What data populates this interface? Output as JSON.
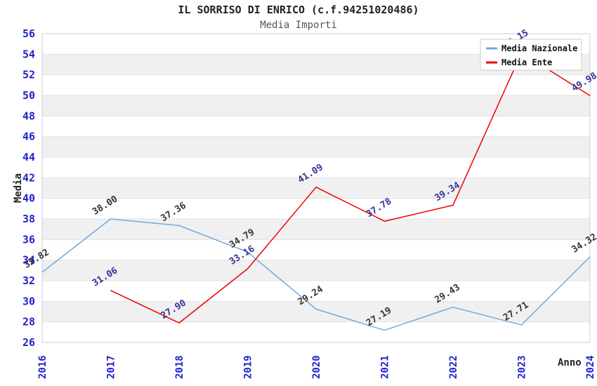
{
  "chart_data": {
    "type": "line",
    "title": "IL SORRISO DI ENRICO (c.f.94251020486)",
    "subtitle": "Media Importi",
    "xlabel": "Anno",
    "ylabel": "Media",
    "x": [
      "2016",
      "2017",
      "2018",
      "2019",
      "2020",
      "2021",
      "2022",
      "2023",
      "2024"
    ],
    "ylim": [
      26,
      56
    ],
    "ytick_step": 2,
    "grid": "horizontal-bands",
    "legend_position": "top-right",
    "series": [
      {
        "name": "Media Nazionale",
        "color": "#74a9dc",
        "label_color": "#333333",
        "values": [
          32.82,
          38.0,
          37.36,
          34.79,
          29.24,
          27.19,
          29.43,
          27.71,
          34.32
        ]
      },
      {
        "name": "Media Ente",
        "color": "#ee0000",
        "label_color": "#333399",
        "values": [
          null,
          31.06,
          27.9,
          33.16,
          41.09,
          37.78,
          39.34,
          54.15,
          49.98
        ]
      }
    ],
    "styles": {
      "tick_color": "#2222cc",
      "band_color": "#f0f0f0",
      "grid_color": "#e2e2e2",
      "border_color": "#cccccc",
      "axis_title_color": "#222222",
      "legend_text_color": "#111111",
      "legend_border_color": "#cccccc",
      "legend_bg_color": "#ffffff"
    }
  }
}
